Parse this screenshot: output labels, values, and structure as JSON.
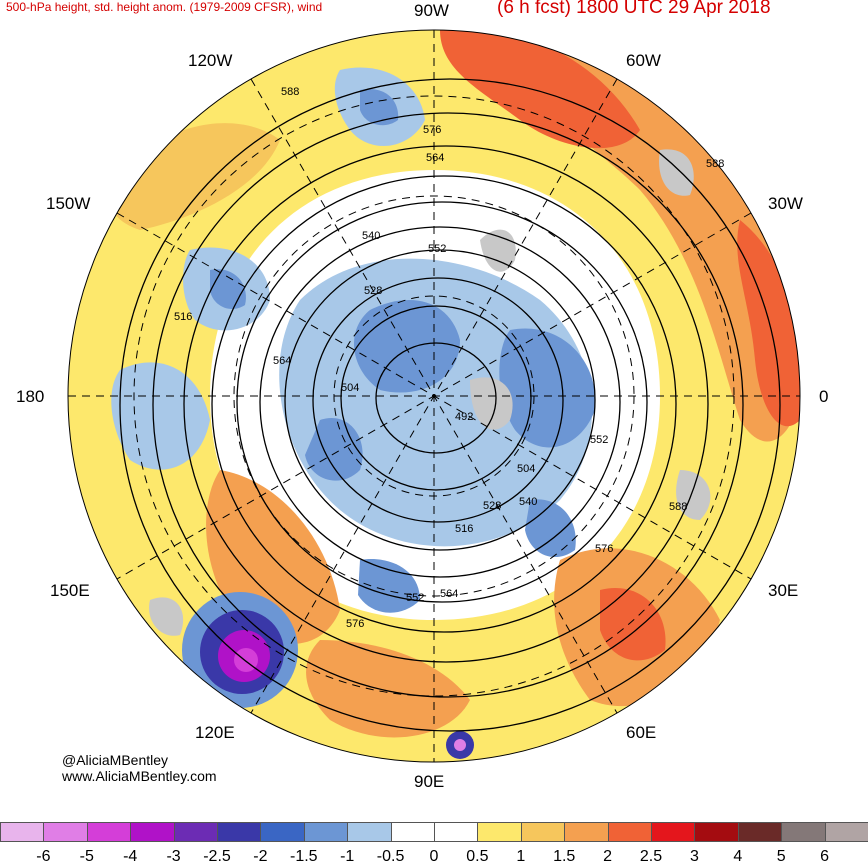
{
  "header": {
    "title_left": "500-hPa height, std. height anom. (1979-2009 CFSR), wind",
    "title_right": "(6 h fcst) 1800 UTC 29 Apr 2018"
  },
  "longitude_labels": [
    "90W",
    "60W",
    "30W",
    "0",
    "30E",
    "60E",
    "90E",
    "120E",
    "150E",
    "180",
    "150W",
    "120W"
  ],
  "contour_labels": [
    "588",
    "576",
    "564",
    "552",
    "540",
    "528",
    "516",
    "504",
    "492",
    "564",
    "552",
    "540",
    "528",
    "516",
    "504",
    "588",
    "576",
    "564",
    "552",
    "576",
    "588"
  ],
  "credit": {
    "author": "@AliciaMBentley",
    "website": "www.AliciaMBentley.com"
  },
  "colorbar": {
    "ticks": [
      "-6",
      "-5",
      "-4",
      "-3",
      "-2.5",
      "-2",
      "-1.5",
      "-1",
      "-0.5",
      "0",
      "0.5",
      "1",
      "1.5",
      "2",
      "2.5",
      "3",
      "4",
      "5",
      "6"
    ],
    "colors": [
      "#e8b4ec",
      "#e07ee6",
      "#d43ed8",
      "#b012c8",
      "#6c2cb4",
      "#3a38a8",
      "#3a66c4",
      "#6c96d4",
      "#a8c8e8",
      "#ffffff",
      "#ffffff",
      "#fde86c",
      "#f6c65c",
      "#f4a050",
      "#f06236",
      "#e4161c",
      "#a40c10",
      "#6a2a28",
      "#847878",
      "#b0a4a4"
    ]
  },
  "colors": {
    "warm_anomaly": "#f4a050",
    "cold_anomaly": "#6c96d4",
    "title_red": "#d40000",
    "land_gray": "#c8c8c8"
  }
}
